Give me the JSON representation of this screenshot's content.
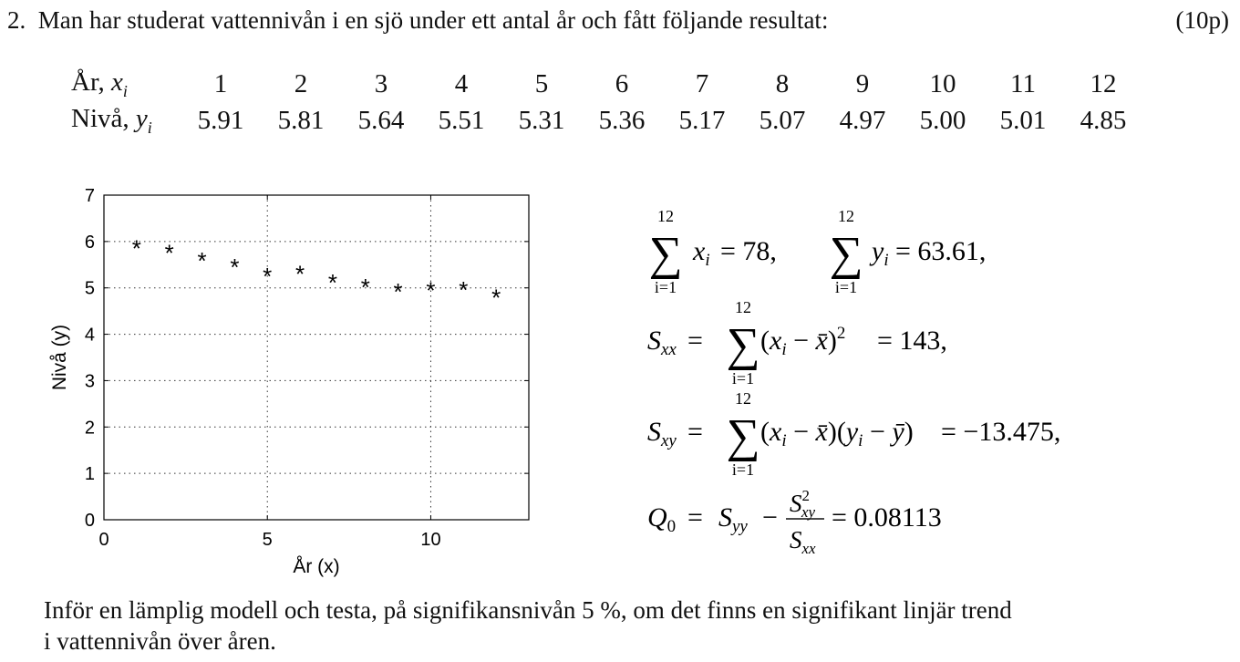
{
  "problem": {
    "number": "2.",
    "statement": "Man har studerat vattennivån i en sjö under ett antal år och fått följande resultat:",
    "points": "(10p)"
  },
  "table": {
    "x_label": "År,",
    "x_var": "x",
    "x_sub": "i",
    "y_label": "Nivå,",
    "y_var": "y",
    "y_sub": "i",
    "x_values": [
      "1",
      "2",
      "3",
      "4",
      "5",
      "6",
      "7",
      "8",
      "9",
      "10",
      "11",
      "12"
    ],
    "y_values": [
      "5.91",
      "5.81",
      "5.64",
      "5.51",
      "5.31",
      "5.36",
      "5.17",
      "5.07",
      "4.97",
      "5.00",
      "5.01",
      "4.85"
    ]
  },
  "chart_data": {
    "type": "scatter",
    "x": [
      1,
      2,
      3,
      4,
      5,
      6,
      7,
      8,
      9,
      10,
      11,
      12
    ],
    "y": [
      5.91,
      5.81,
      5.64,
      5.51,
      5.31,
      5.36,
      5.17,
      5.07,
      4.97,
      5.0,
      5.01,
      4.85
    ],
    "xlabel": "År (x)",
    "ylabel": "Nivå (y)",
    "xlim": [
      0,
      13
    ],
    "ylim": [
      0,
      7
    ],
    "xticks": [
      "0",
      "5",
      "10"
    ],
    "yticks": [
      "0",
      "1",
      "2",
      "3",
      "4",
      "5",
      "6",
      "7"
    ],
    "marker": "*",
    "grid": true,
    "grid_style": "dotted"
  },
  "formulas": {
    "sum_upper": "12",
    "sum_lower": "i=1",
    "sum_x_result": "= 78,",
    "sum_y_result": "= 63.61,",
    "sxx_result": "= 143,",
    "sxy_result": "= −13.475,",
    "q0_result": "= 0.08113"
  },
  "question": {
    "line1": "Inför en lämplig modell och testa, på signifikansnivån 5 %, om det finns en signifikant linjär trend",
    "line2": "i vattennivån över åren."
  }
}
